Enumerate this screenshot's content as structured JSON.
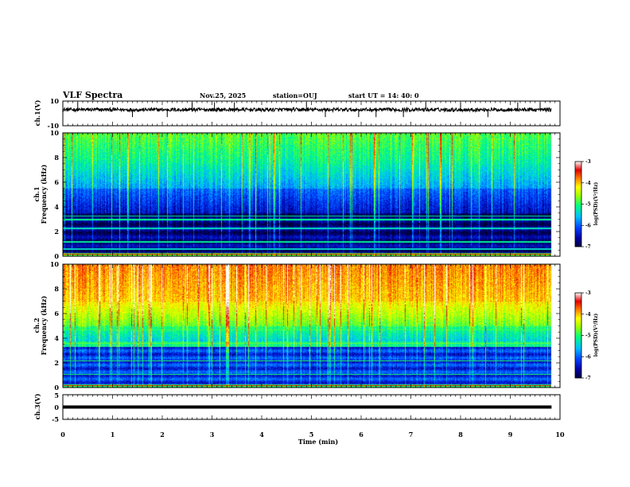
{
  "header": {
    "title": "VLF Spectra",
    "date": "Nov.25, 2025",
    "station": "station=OUJ",
    "start": "start UT =  14: 40: 0"
  },
  "colors": {
    "waveform": "#000000",
    "colormap": [
      "#000000",
      "#0000a0",
      "#0030ff",
      "#00c0ff",
      "#00ff80",
      "#a0ff00",
      "#ffff00",
      "#ff8000",
      "#e00000",
      "#ffffff"
    ]
  },
  "chart_data": [
    {
      "type": "line",
      "panel": "ch1-waveform",
      "ylabel": "ch.1(V)",
      "ylim": [
        -10,
        10
      ],
      "yticks": [
        "10",
        "-10"
      ],
      "xlim": [
        0,
        10
      ],
      "baseline": 3,
      "range": [
        1.5,
        4.5
      ]
    },
    {
      "type": "heatmap",
      "panel": "ch1-spectrogram",
      "ylabel": "ch.1\nFrequency (kHz)",
      "ylim": [
        0,
        10
      ],
      "yticks": [
        "0",
        "2",
        "4",
        "6",
        "8",
        "10"
      ],
      "xlim": [
        0,
        10
      ],
      "data_end_min": 9.83,
      "colorbar": {
        "label": "log(PSD)(V²/Hz)",
        "range": [
          -7,
          -3
        ],
        "ticks": [
          "-3",
          "-4",
          "-5",
          "-6",
          "-7"
        ]
      }
    },
    {
      "type": "heatmap",
      "panel": "ch2-spectrogram",
      "ylabel": "ch.2\nFrequency (kHz)",
      "ylim": [
        0,
        10
      ],
      "yticks": [
        "0",
        "2",
        "4",
        "6",
        "8",
        "10"
      ],
      "xlim": [
        0,
        10
      ],
      "data_end_min": 9.83,
      "colorbar": {
        "label": "log(PSD)(V²/Hz)",
        "range": [
          -7,
          -3
        ],
        "ticks": [
          "-3",
          "-4",
          "-5",
          "-6",
          "-7"
        ]
      }
    },
    {
      "type": "line",
      "panel": "ch3-waveform",
      "ylabel": "ch.3(V)",
      "ylim": [
        -5,
        5
      ],
      "yticks": [
        "5",
        "0",
        "-5"
      ],
      "xlim": [
        0,
        10
      ],
      "baseline": 0
    }
  ],
  "xaxis": {
    "label": "Time (min)",
    "ticks": [
      "0",
      "1",
      "2",
      "3",
      "4",
      "5",
      "6",
      "7",
      "8",
      "9",
      "10"
    ]
  }
}
